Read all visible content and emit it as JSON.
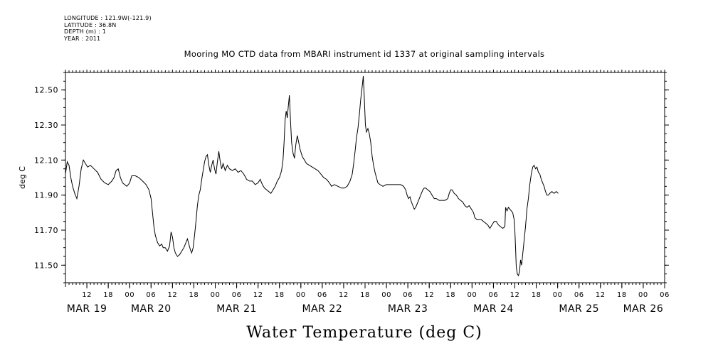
{
  "header": {
    "longitude": "LONGITUDE : 121.9W(-121.9)",
    "latitude": "LATITUDE : 36.8N",
    "depth": "DEPTH (m) : 1",
    "year": "YEAR : 2011"
  },
  "chart_data": {
    "type": "line",
    "title": "Mooring MO CTD data from MBARI instrument id 1337 at original sampling intervals",
    "xlabel": "Water Temperature (deg C)",
    "ylabel": "deg C",
    "ylim": [
      11.4,
      12.6
    ],
    "yticks": [
      "11.50",
      "11.70",
      "11.90",
      "12.10",
      "12.30",
      "12.50"
    ],
    "xlim_hours_from_mar19_0000": [
      6,
      174
    ],
    "hour_ticks": [
      {
        "t": 12,
        "label": "12"
      },
      {
        "t": 18,
        "label": "18"
      },
      {
        "t": 24,
        "label": "00"
      },
      {
        "t": 30,
        "label": "06"
      },
      {
        "t": 36,
        "label": "12"
      },
      {
        "t": 42,
        "label": "18"
      },
      {
        "t": 48,
        "label": "00"
      },
      {
        "t": 54,
        "label": "06"
      },
      {
        "t": 60,
        "label": "12"
      },
      {
        "t": 66,
        "label": "18"
      },
      {
        "t": 72,
        "label": "00"
      },
      {
        "t": 78,
        "label": "06"
      },
      {
        "t": 84,
        "label": "12"
      },
      {
        "t": 90,
        "label": "18"
      },
      {
        "t": 96,
        "label": "00"
      },
      {
        "t": 102,
        "label": "06"
      },
      {
        "t": 108,
        "label": "12"
      },
      {
        "t": 114,
        "label": "18"
      },
      {
        "t": 120,
        "label": "00"
      },
      {
        "t": 126,
        "label": "06"
      },
      {
        "t": 132,
        "label": "12"
      },
      {
        "t": 138,
        "label": "18"
      },
      {
        "t": 144,
        "label": "00"
      },
      {
        "t": 150,
        "label": "06"
      },
      {
        "t": 156,
        "label": "12"
      },
      {
        "t": 162,
        "label": "18"
      },
      {
        "t": 168,
        "label": "00"
      },
      {
        "t": 174,
        "label": "06"
      }
    ],
    "day_labels": [
      {
        "t": 12,
        "label": "MAR 19"
      },
      {
        "t": 30,
        "label": "MAR 20"
      },
      {
        "t": 54,
        "label": "MAR 21"
      },
      {
        "t": 78,
        "label": "MAR 22"
      },
      {
        "t": 102,
        "label": "MAR 23"
      },
      {
        "t": 126,
        "label": "MAR 24"
      },
      {
        "t": 150,
        "label": "MAR 25"
      },
      {
        "t": 168,
        "label": "MAR 26"
      }
    ],
    "series": [
      {
        "values_hours_from_mar19_0000": [
          [
            6.0,
            12.02
          ],
          [
            6.5,
            12.09
          ],
          [
            7.0,
            12.07
          ],
          [
            7.5,
            12.0
          ],
          [
            8.0,
            11.95
          ],
          [
            8.6,
            11.91
          ],
          [
            9.2,
            11.88
          ],
          [
            9.8,
            11.95
          ],
          [
            10.4,
            12.05
          ],
          [
            11.0,
            12.1
          ],
          [
            11.6,
            12.08
          ],
          [
            12.2,
            12.06
          ],
          [
            13.0,
            12.07
          ],
          [
            14.0,
            12.05
          ],
          [
            15.0,
            12.03
          ],
          [
            16.0,
            11.99
          ],
          [
            17.0,
            11.97
          ],
          [
            18.0,
            11.96
          ],
          [
            19.0,
            11.98
          ],
          [
            19.6,
            12.0
          ],
          [
            20.2,
            12.04
          ],
          [
            20.8,
            12.05
          ],
          [
            21.4,
            12.0
          ],
          [
            22.0,
            11.97
          ],
          [
            22.6,
            11.96
          ],
          [
            23.2,
            11.95
          ],
          [
            24.0,
            11.97
          ],
          [
            24.6,
            12.01
          ],
          [
            25.6,
            12.01
          ],
          [
            26.6,
            12.0
          ],
          [
            27.6,
            11.98
          ],
          [
            28.6,
            11.96
          ],
          [
            29.4,
            11.93
          ],
          [
            30.0,
            11.88
          ],
          [
            30.4,
            11.8
          ],
          [
            30.8,
            11.72
          ],
          [
            31.2,
            11.67
          ],
          [
            31.8,
            11.63
          ],
          [
            32.4,
            11.61
          ],
          [
            33.0,
            11.62
          ],
          [
            33.4,
            11.6
          ],
          [
            34.0,
            11.6
          ],
          [
            34.6,
            11.58
          ],
          [
            35.2,
            11.61
          ],
          [
            35.6,
            11.69
          ],
          [
            36.0,
            11.66
          ],
          [
            36.4,
            11.6
          ],
          [
            36.8,
            11.57
          ],
          [
            37.4,
            11.55
          ],
          [
            38.0,
            11.56
          ],
          [
            38.6,
            11.58
          ],
          [
            39.2,
            11.6
          ],
          [
            39.8,
            11.63
          ],
          [
            40.2,
            11.65
          ],
          [
            40.6,
            11.62
          ],
          [
            41.0,
            11.59
          ],
          [
            41.4,
            11.57
          ],
          [
            41.8,
            11.6
          ],
          [
            42.2,
            11.67
          ],
          [
            42.6,
            11.75
          ],
          [
            43.0,
            11.84
          ],
          [
            43.4,
            11.9
          ],
          [
            43.8,
            11.93
          ],
          [
            44.2,
            11.99
          ],
          [
            44.6,
            12.04
          ],
          [
            45.0,
            12.09
          ],
          [
            45.4,
            12.12
          ],
          [
            45.8,
            12.13
          ],
          [
            46.2,
            12.07
          ],
          [
            46.6,
            12.03
          ],
          [
            47.0,
            12.07
          ],
          [
            47.4,
            12.1
          ],
          [
            47.8,
            12.05
          ],
          [
            48.2,
            12.02
          ],
          [
            48.6,
            12.09
          ],
          [
            49.0,
            12.15
          ],
          [
            49.4,
            12.09
          ],
          [
            49.8,
            12.05
          ],
          [
            50.2,
            12.08
          ],
          [
            50.8,
            12.04
          ],
          [
            51.4,
            12.07
          ],
          [
            52.0,
            12.05
          ],
          [
            52.8,
            12.04
          ],
          [
            53.6,
            12.05
          ],
          [
            54.4,
            12.03
          ],
          [
            55.2,
            12.04
          ],
          [
            56.0,
            12.02
          ],
          [
            56.8,
            11.99
          ],
          [
            57.6,
            11.98
          ],
          [
            58.4,
            11.98
          ],
          [
            59.2,
            11.96
          ],
          [
            60.0,
            11.97
          ],
          [
            60.6,
            11.99
          ],
          [
            61.2,
            11.96
          ],
          [
            61.8,
            11.94
          ],
          [
            62.4,
            11.93
          ],
          [
            63.0,
            11.92
          ],
          [
            63.6,
            11.91
          ],
          [
            64.2,
            11.93
          ],
          [
            64.8,
            11.95
          ],
          [
            65.4,
            11.98
          ],
          [
            66.0,
            12.0
          ],
          [
            66.6,
            12.04
          ],
          [
            67.0,
            12.1
          ],
          [
            67.3,
            12.2
          ],
          [
            67.6,
            12.33
          ],
          [
            67.9,
            12.38
          ],
          [
            68.2,
            12.34
          ],
          [
            68.5,
            12.41
          ],
          [
            68.8,
            12.47
          ],
          [
            69.1,
            12.32
          ],
          [
            69.4,
            12.2
          ],
          [
            69.8,
            12.14
          ],
          [
            70.2,
            12.11
          ],
          [
            70.6,
            12.19
          ],
          [
            71.0,
            12.24
          ],
          [
            71.4,
            12.2
          ],
          [
            71.8,
            12.16
          ],
          [
            72.4,
            12.12
          ],
          [
            73.0,
            12.1
          ],
          [
            73.6,
            12.08
          ],
          [
            74.4,
            12.07
          ],
          [
            75.2,
            12.06
          ],
          [
            76.0,
            12.05
          ],
          [
            76.8,
            12.04
          ],
          [
            77.6,
            12.02
          ],
          [
            78.4,
            12.0
          ],
          [
            79.2,
            11.99
          ],
          [
            80.0,
            11.97
          ],
          [
            80.6,
            11.95
          ],
          [
            81.4,
            11.96
          ],
          [
            82.4,
            11.95
          ],
          [
            83.4,
            11.94
          ],
          [
            84.2,
            11.94
          ],
          [
            85.0,
            11.95
          ],
          [
            85.8,
            11.98
          ],
          [
            86.4,
            12.02
          ],
          [
            86.8,
            12.08
          ],
          [
            87.2,
            12.15
          ],
          [
            87.6,
            12.23
          ],
          [
            88.0,
            12.28
          ],
          [
            88.4,
            12.36
          ],
          [
            88.8,
            12.45
          ],
          [
            89.2,
            12.52
          ],
          [
            89.5,
            12.58
          ],
          [
            89.8,
            12.45
          ],
          [
            90.1,
            12.3
          ],
          [
            90.4,
            12.26
          ],
          [
            90.8,
            12.28
          ],
          [
            91.2,
            12.25
          ],
          [
            91.6,
            12.2
          ],
          [
            92.0,
            12.12
          ],
          [
            92.4,
            12.07
          ],
          [
            92.8,
            12.03
          ],
          [
            93.2,
            12.0
          ],
          [
            93.6,
            11.97
          ],
          [
            94.2,
            11.96
          ],
          [
            95.0,
            11.95
          ],
          [
            96.0,
            11.96
          ],
          [
            97.0,
            11.96
          ],
          [
            98.0,
            11.96
          ],
          [
            99.0,
            11.96
          ],
          [
            100.0,
            11.96
          ],
          [
            100.8,
            11.95
          ],
          [
            101.4,
            11.93
          ],
          [
            101.8,
            11.9
          ],
          [
            102.2,
            11.88
          ],
          [
            102.6,
            11.89
          ],
          [
            103.0,
            11.86
          ],
          [
            103.4,
            11.84
          ],
          [
            103.8,
            11.82
          ],
          [
            104.2,
            11.83
          ],
          [
            104.6,
            11.85
          ],
          [
            105.0,
            11.87
          ],
          [
            105.4,
            11.89
          ],
          [
            105.8,
            11.91
          ],
          [
            106.2,
            11.93
          ],
          [
            106.6,
            11.94
          ],
          [
            107.0,
            11.94
          ],
          [
            107.6,
            11.93
          ],
          [
            108.2,
            11.92
          ],
          [
            108.8,
            11.9
          ],
          [
            109.4,
            11.88
          ],
          [
            110.0,
            11.88
          ],
          [
            110.8,
            11.87
          ],
          [
            111.6,
            11.87
          ],
          [
            112.4,
            11.87
          ],
          [
            113.2,
            11.88
          ],
          [
            113.6,
            11.91
          ],
          [
            114.0,
            11.93
          ],
          [
            114.4,
            11.93
          ],
          [
            115.0,
            11.91
          ],
          [
            115.6,
            11.9
          ],
          [
            116.2,
            11.88
          ],
          [
            116.8,
            11.87
          ],
          [
            117.4,
            11.86
          ],
          [
            118.0,
            11.84
          ],
          [
            118.6,
            11.83
          ],
          [
            119.2,
            11.84
          ],
          [
            119.8,
            11.82
          ],
          [
            120.4,
            11.8
          ],
          [
            120.8,
            11.77
          ],
          [
            121.4,
            11.76
          ],
          [
            122.0,
            11.76
          ],
          [
            122.6,
            11.76
          ],
          [
            123.2,
            11.75
          ],
          [
            123.8,
            11.74
          ],
          [
            124.4,
            11.73
          ],
          [
            125.0,
            11.71
          ],
          [
            125.6,
            11.73
          ],
          [
            126.2,
            11.75
          ],
          [
            126.8,
            11.75
          ],
          [
            127.4,
            11.73
          ],
          [
            128.0,
            11.72
          ],
          [
            128.6,
            11.71
          ],
          [
            129.2,
            11.72
          ],
          [
            129.4,
            11.83
          ],
          [
            129.8,
            11.81
          ],
          [
            130.2,
            11.83
          ],
          [
            130.6,
            11.82
          ],
          [
            131.0,
            11.81
          ],
          [
            131.4,
            11.8
          ],
          [
            131.8,
            11.76
          ],
          [
            132.0,
            11.7
          ],
          [
            132.2,
            11.6
          ],
          [
            132.4,
            11.49
          ],
          [
            132.7,
            11.45
          ],
          [
            133.0,
            11.44
          ],
          [
            133.3,
            11.46
          ],
          [
            133.6,
            11.53
          ],
          [
            133.9,
            11.5
          ],
          [
            134.2,
            11.56
          ],
          [
            134.6,
            11.64
          ],
          [
            135.0,
            11.72
          ],
          [
            135.4,
            11.82
          ],
          [
            135.8,
            11.88
          ],
          [
            136.2,
            11.96
          ],
          [
            136.6,
            12.02
          ],
          [
            137.0,
            12.06
          ],
          [
            137.4,
            12.07
          ],
          [
            137.8,
            12.05
          ],
          [
            138.2,
            12.06
          ],
          [
            138.6,
            12.03
          ],
          [
            139.0,
            12.02
          ],
          [
            139.4,
            11.99
          ],
          [
            139.8,
            11.97
          ],
          [
            140.2,
            11.95
          ],
          [
            140.6,
            11.92
          ],
          [
            141.0,
            11.9
          ],
          [
            141.4,
            11.9
          ],
          [
            141.8,
            11.91
          ],
          [
            142.4,
            11.92
          ],
          [
            143.0,
            11.91
          ],
          [
            143.6,
            11.92
          ],
          [
            144.2,
            11.91
          ]
        ]
      }
    ]
  }
}
